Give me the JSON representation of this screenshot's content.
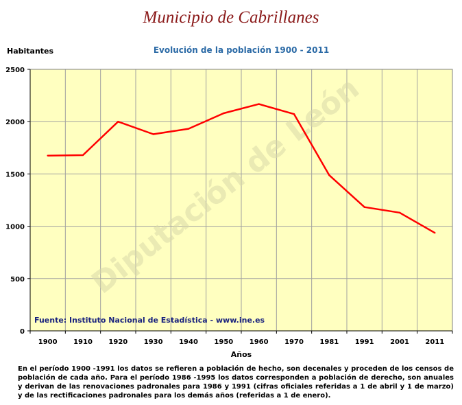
{
  "header": {
    "title": "Municipio de Cabrillanes"
  },
  "chart_data": {
    "type": "line",
    "title": "Evolución de la población 1900 - 2011",
    "ylabel": "Habitantes",
    "xlabel": "Años",
    "categories": [
      "1900",
      "1910",
      "1920",
      "1930",
      "1940",
      "1950",
      "1960",
      "1970",
      "1981",
      "1991",
      "2001",
      "2011"
    ],
    "series": [
      {
        "values": [
          1675,
          1680,
          2000,
          1880,
          1932,
          2080,
          2168,
          2072,
          1488,
          1183,
          1130,
          937
        ]
      }
    ],
    "ylim": [
      0,
      2500
    ],
    "yticks": [
      0,
      500,
      1000,
      1500,
      2000,
      2500
    ],
    "grid": true,
    "colors": {
      "line": "#ff0000",
      "plot_background": "#ffffc0",
      "grid": "#a0a0a0"
    },
    "source": "Fuente: Instituto Nacional de Estadística - www.ine.es",
    "watermark": "Diputación de León"
  },
  "footnote": "En el período 1900 -1991 los datos se refieren a población de hecho, son decenales y proceden de los censos de población de cada año. Para el período 1986 -1995 los datos corresponden a población de derecho, son anuales y derivan de las renovaciones padronales para 1986 y 1991 (cifras oficiales referidas a 1 de abril y 1 de marzo) y de las rectificaciones padronales para los demás años (referidas a 1 de enero)."
}
